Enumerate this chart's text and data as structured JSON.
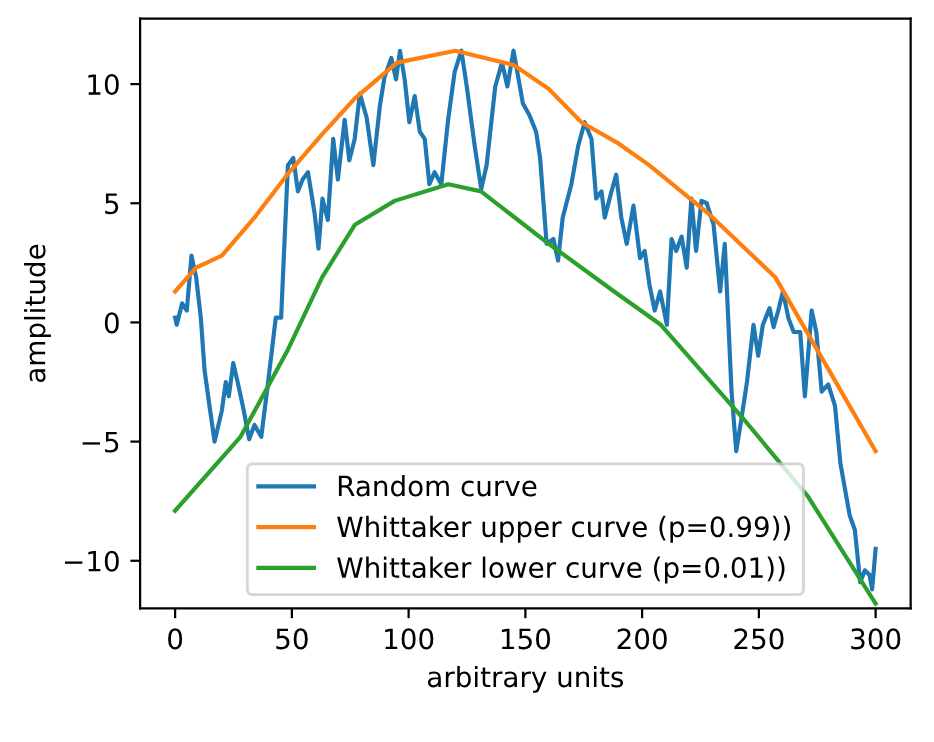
{
  "chart_data": {
    "type": "line",
    "xlabel": "arbitrary units",
    "ylabel": "amplitude",
    "xlim": [
      -15,
      315
    ],
    "ylim": [
      -12.0,
      12.75
    ],
    "xticks": [
      0,
      50,
      100,
      150,
      200,
      250,
      300
    ],
    "yticks": [
      -10,
      -5,
      0,
      5,
      10
    ],
    "legend": "lower center",
    "grid": false,
    "series": [
      {
        "name": "Random curve",
        "color": "#1f77b4",
        "x": [
          0,
          0.7,
          3,
          5,
          7,
          9,
          11,
          12.6,
          15,
          16.9,
          20,
          21.7,
          23,
          24.9,
          27,
          29.4,
          31.7,
          34,
          36.9,
          39.7,
          43.1,
          45.4,
          48.3,
          50.6,
          52.6,
          54.6,
          56.9,
          59.7,
          61.4,
          63.1,
          65.4,
          67.7,
          69.7,
          72.6,
          74.6,
          76.9,
          79.1,
          82,
          84.9,
          87.7,
          89.7,
          92.6,
          94.6,
          96.3,
          98.3,
          100.3,
          102.6,
          104.8,
          106.9,
          108.9,
          111.1,
          114,
          116.9,
          119.7,
          122.6,
          124.9,
          128.3,
          131.1,
          133.4,
          137.1,
          140,
          142.3,
          144.9,
          147.1,
          148.9,
          151.7,
          154.6,
          156.3,
          159.1,
          162,
          164,
          166,
          169.7,
          172.6,
          175.4,
          178.3,
          180.3,
          182.6,
          184,
          186.9,
          188.9,
          191.1,
          193.4,
          196.3,
          199.1,
          201.1,
          203.1,
          205.4,
          207.7,
          210.6,
          212.6,
          214.6,
          216.9,
          219.1,
          221.1,
          223.1,
          225.4,
          227.7,
          230.6,
          233.4,
          235.4,
          238.3,
          240.3,
          242.6,
          244.9,
          247.7,
          249.7,
          251.7,
          254.6,
          256.3,
          258.3,
          260.3,
          262.6,
          264.9,
          267.7,
          269.7,
          272.6,
          274.6,
          276.9,
          279.7,
          282.6,
          284.9,
          286.9,
          288.9,
          291.1,
          293.4,
          295.4,
          297.4,
          298.5,
          300
        ],
        "values": [
          0.2,
          -0.1,
          0.8,
          0.5,
          2.8,
          1.9,
          0.2,
          -2.0,
          -3.7,
          -5.0,
          -3.7,
          -2.5,
          -3.1,
          -1.7,
          -2.6,
          -3.7,
          -4.9,
          -4.3,
          -4.8,
          -2.6,
          0.2,
          0.2,
          6.6,
          6.9,
          5.5,
          6.0,
          6.3,
          4.6,
          3.1,
          5.2,
          4.3,
          7.7,
          6.0,
          8.5,
          6.8,
          7.7,
          9.6,
          8.6,
          6.6,
          9.1,
          10.3,
          11.1,
          10.2,
          11.4,
          10.2,
          8.4,
          9.5,
          8.0,
          7.7,
          5.8,
          6.3,
          5.8,
          8.5,
          10.5,
          11.4,
          9.9,
          7.4,
          5.6,
          6.6,
          9.9,
          10.9,
          9.9,
          11.4,
          10.2,
          9.2,
          8.7,
          8.0,
          6.9,
          3.3,
          3.5,
          2.6,
          4.4,
          5.8,
          7.4,
          8.4,
          7.7,
          5.2,
          5.5,
          4.4,
          5.5,
          6.2,
          4.4,
          3.3,
          4.9,
          2.7,
          3.0,
          1.6,
          0.5,
          1.3,
          -0.1,
          3.5,
          3.0,
          3.6,
          2.3,
          5.2,
          3.0,
          5.1,
          5.0,
          4.1,
          1.3,
          3.3,
          -2.9,
          -5.4,
          -4.0,
          -2.5,
          -0.1,
          -1.4,
          -0.1,
          0.6,
          -0.2,
          0.5,
          1.3,
          0.2,
          -0.4,
          -0.4,
          -3.1,
          0.5,
          -0.4,
          -2.9,
          -2.6,
          -3.5,
          -5.9,
          -7.0,
          -8.1,
          -8.7,
          -10.9,
          -10.4,
          -10.6,
          -11.2,
          -9.5
        ]
      },
      {
        "name": "Whittaker upper curve (p=0.99))",
        "color": "#ff7f0e",
        "x": [
          0,
          9,
          20,
          34,
          48,
          63,
          77,
          95,
          120,
          145,
          160,
          174,
          190,
          203,
          228,
          257,
          280,
          300
        ],
        "values": [
          1.3,
          2.3,
          2.8,
          4.4,
          6.2,
          7.9,
          9.4,
          10.9,
          11.4,
          10.8,
          9.8,
          8.4,
          7.5,
          6.6,
          4.6,
          1.9,
          -2.0,
          -5.4
        ]
      },
      {
        "name": "Whittaker lower curve (p=0.01))",
        "color": "#2ca02c",
        "x": [
          0,
          28,
          48,
          63,
          77,
          94,
          117,
          131,
          160,
          188,
          208,
          243,
          271,
          300
        ],
        "values": [
          -7.9,
          -4.8,
          -1.2,
          1.9,
          4.1,
          5.1,
          5.8,
          5.5,
          3.3,
          1.3,
          -0.1,
          -4.0,
          -7.3,
          -11.8
        ]
      }
    ]
  }
}
